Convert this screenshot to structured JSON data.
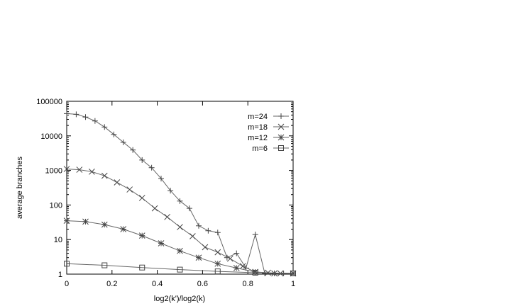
{
  "chart_data": {
    "type": "line",
    "title": "",
    "xlabel": "log2(k')/log2(k)",
    "ylabel": "average branches",
    "xlim": [
      0,
      1
    ],
    "ylim": [
      1,
      100000
    ],
    "yscale": "log",
    "xticks": [
      "0",
      "0.2",
      "0.4",
      "0.6",
      "0.8",
      "1"
    ],
    "yticks": [
      "1",
      "10",
      "100",
      "1000",
      "10000",
      "100000"
    ],
    "grid": false,
    "legend_position": "top-right",
    "series": [
      {
        "name": "m=24",
        "marker": "plus",
        "x": [
          0,
          0.042,
          0.083,
          0.125,
          0.167,
          0.208,
          0.25,
          0.292,
          0.333,
          0.375,
          0.417,
          0.458,
          0.5,
          0.542,
          0.583,
          0.625,
          0.667,
          0.708,
          0.75,
          0.792,
          0.833,
          0.875,
          0.917,
          0.958,
          1
        ],
        "y": [
          44000,
          42000,
          35000,
          27000,
          18000,
          11000,
          6500,
          3900,
          2000,
          1200,
          580,
          260,
          130,
          80,
          25,
          18,
          16,
          3,
          4,
          1.5,
          14,
          1.05,
          1.05,
          1.05,
          1.05
        ]
      },
      {
        "name": "m=18",
        "marker": "cross",
        "x": [
          0,
          0.056,
          0.111,
          0.167,
          0.222,
          0.278,
          0.333,
          0.389,
          0.444,
          0.5,
          0.556,
          0.611,
          0.667,
          0.722,
          0.778,
          0.833,
          0.889,
          0.944,
          1
        ],
        "y": [
          1100,
          1050,
          920,
          700,
          450,
          280,
          160,
          80,
          45,
          23,
          12.5,
          6,
          4.3,
          2.8,
          1.7,
          1.15,
          1.1,
          1.05,
          1.05
        ]
      },
      {
        "name": "m=12",
        "marker": "star",
        "x": [
          0,
          0.083,
          0.167,
          0.25,
          0.333,
          0.417,
          0.5,
          0.583,
          0.667,
          0.75,
          0.833,
          0.917,
          1
        ],
        "y": [
          35,
          33,
          27,
          20,
          13,
          7.8,
          4.7,
          3,
          2,
          1.5,
          1.15,
          1.05,
          1.05
        ]
      },
      {
        "name": "m=6",
        "marker": "square",
        "x": [
          0,
          0.167,
          0.333,
          0.5,
          0.667,
          0.833,
          1
        ],
        "y": [
          2,
          1.8,
          1.55,
          1.35,
          1.2,
          1.1,
          1.05
        ]
      }
    ]
  }
}
